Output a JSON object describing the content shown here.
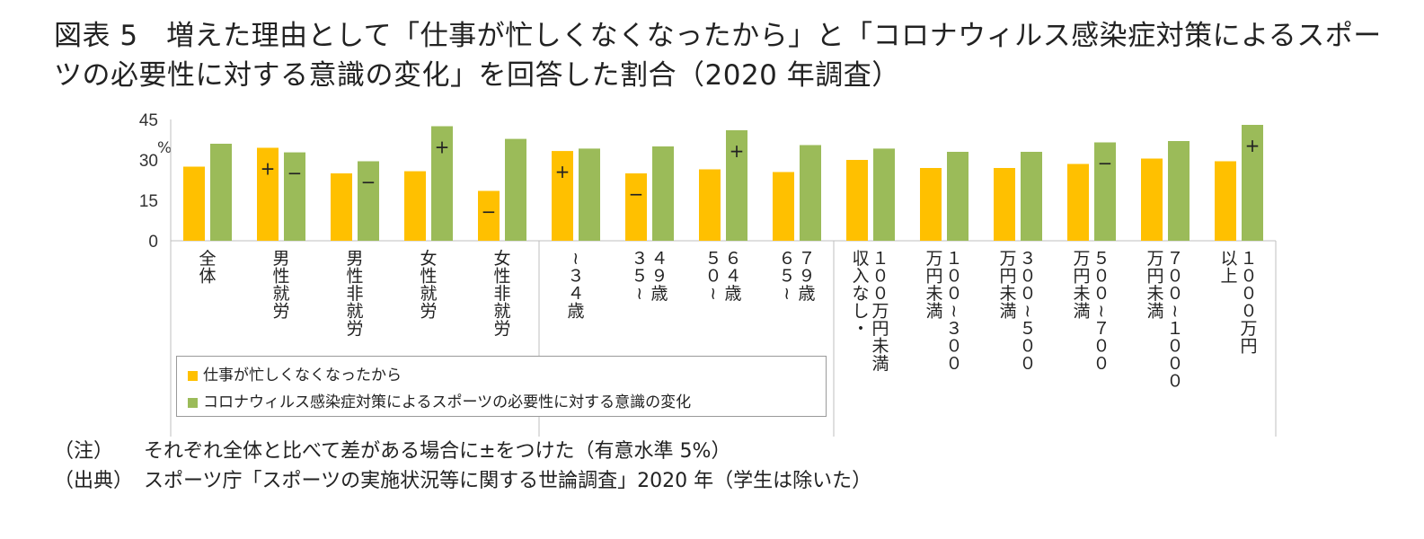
{
  "title": {
    "line1": "図表 5　増えた理由として「仕事が忙しくなくなったから」と「コロナウィルス感染症対策によるスポー",
    "line2": "ツの必要性に対する意識の変化」を回答した割合（2020 年調査）"
  },
  "notes": [
    {
      "tag": "（注）",
      "text": "それぞれ全体と比べて差がある場合に±をつけた（有意水準 5%）"
    },
    {
      "tag": "（出典）",
      "text": "スポーツ庁「スポーツの実施状況等に関する世論調査」2020 年（学生は除いた）"
    }
  ],
  "chart_data": {
    "type": "bar",
    "ylabel": "%",
    "ylim": [
      0,
      45
    ],
    "yticks": [
      0,
      15,
      30,
      45
    ],
    "grid": false,
    "legend_placement": "bottom-left, inside category area",
    "categories": [
      "全体",
      "男性就労",
      "男性非就労",
      "女性就労",
      "女性非就労",
      "~３４歳",
      "３５~４９歳",
      "５０~６４歳",
      "６５~７９歳",
      "収入なし・１００万円未満",
      "１００~３００万円未満",
      "３００~５００万円未満",
      "５００~７００万円未満",
      "７００~１０００万円未満",
      "１０００万円以上"
    ],
    "category_columns": [
      [
        "全体"
      ],
      [
        "男性就労"
      ],
      [
        "男性非就労"
      ],
      [
        "女性就労"
      ],
      [
        "女性非就労"
      ],
      [
        "~３４歳"
      ],
      [
        "４９歳",
        "３５~"
      ],
      [
        "６４歳",
        "５０~"
      ],
      [
        "７９歳",
        "６５~"
      ],
      [
        "１００万円未満",
        "収入なし・"
      ],
      [
        "１００~３００",
        "万円未満"
      ],
      [
        "３００~５００",
        "万円未満"
      ],
      [
        "５００~７００",
        "万円未満"
      ],
      [
        "７００~１０００",
        "万円未満"
      ],
      [
        "１０００万円",
        "以上"
      ]
    ],
    "group_separators_after": [
      4,
      8
    ],
    "series": [
      {
        "name": "仕事が忙しくなくなったから",
        "color": "#FFC000",
        "values": [
          27.5,
          34.5,
          25,
          25.8,
          18.5,
          33.3,
          25,
          26.5,
          25.5,
          30,
          27,
          27,
          28.5,
          30.5,
          29.5
        ],
        "marks": [
          "",
          "+",
          "",
          "",
          "−",
          "+",
          "−",
          "",
          "",
          "",
          "",
          "",
          "",
          "",
          ""
        ]
      },
      {
        "name": "コロナウィルス感染症対策によるスポーツの必要性に対する意識の変化",
        "color": "#9BBB59",
        "values": [
          36,
          32.8,
          29.5,
          42.5,
          37.8,
          34.2,
          35,
          41,
          35.5,
          34.2,
          33,
          33,
          36.5,
          37,
          43
        ],
        "marks": [
          "",
          "−",
          "−",
          "+",
          "",
          "",
          "",
          "+",
          "",
          "",
          "",
          "",
          "−",
          "",
          "+"
        ]
      }
    ]
  }
}
